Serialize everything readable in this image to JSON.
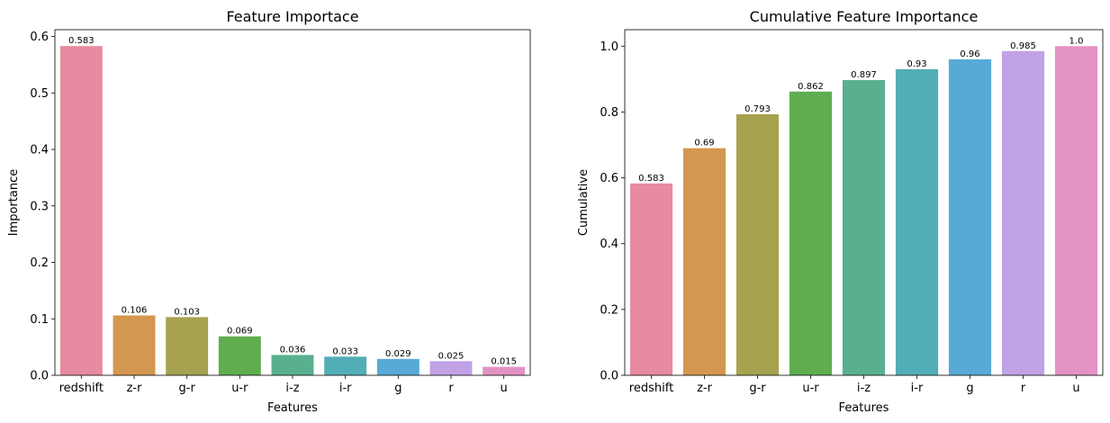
{
  "chart_data": [
    {
      "type": "bar",
      "title": "Feature Importace",
      "xlabel": "Features",
      "ylabel": "Importance",
      "categories": [
        "redshift",
        "z-r",
        "g-r",
        "u-r",
        "i-z",
        "i-r",
        "g",
        "r",
        "u"
      ],
      "values": [
        0.583,
        0.106,
        0.103,
        0.069,
        0.036,
        0.033,
        0.029,
        0.025,
        0.015
      ],
      "data_labels": [
        "0.583",
        "0.106",
        "0.103",
        "0.069",
        "0.036",
        "0.033",
        "0.029",
        "0.025",
        "0.015"
      ],
      "ylim": [
        0,
        0.612
      ],
      "yticks": [
        0.0,
        0.1,
        0.2,
        0.3,
        0.4,
        0.5,
        0.6
      ],
      "ytick_labels": [
        "0.0",
        "0.1",
        "0.2",
        "0.3",
        "0.4",
        "0.5",
        "0.6"
      ],
      "grid": false,
      "colors": [
        "#e88aa0",
        "#d3974f",
        "#a6a24f",
        "#5fad4f",
        "#59b08f",
        "#52aeb6",
        "#58aad6",
        "#c0a2e6",
        "#e492c4"
      ]
    },
    {
      "type": "bar",
      "title": "Cumulative Feature Importance",
      "xlabel": "Features",
      "ylabel": "Cumulative",
      "categories": [
        "redshift",
        "z-r",
        "g-r",
        "u-r",
        "i-z",
        "i-r",
        "g",
        "r",
        "u"
      ],
      "values": [
        0.583,
        0.69,
        0.793,
        0.862,
        0.897,
        0.93,
        0.96,
        0.985,
        1.0
      ],
      "data_labels": [
        "0.583",
        "0.69",
        "0.793",
        "0.862",
        "0.897",
        "0.93",
        "0.96",
        "0.985",
        "1.0"
      ],
      "ylim": [
        0,
        1.05
      ],
      "yticks": [
        0.0,
        0.2,
        0.4,
        0.6,
        0.8,
        1.0
      ],
      "ytick_labels": [
        "0.0",
        "0.2",
        "0.4",
        "0.6",
        "0.8",
        "1.0"
      ],
      "grid": false,
      "colors": [
        "#e88aa0",
        "#d3974f",
        "#a6a24f",
        "#5fad4f",
        "#59b08f",
        "#52aeb6",
        "#58aad6",
        "#c0a2e6",
        "#e492c4"
      ]
    }
  ]
}
